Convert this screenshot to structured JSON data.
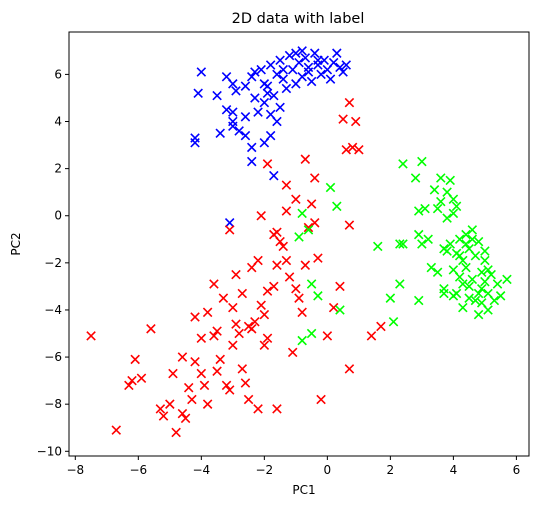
{
  "chart_data": {
    "type": "scatter",
    "title": "2D data with label",
    "xlabel": "PC1",
    "ylabel": "PC2",
    "xlim": [
      -8.2,
      6.4
    ],
    "ylim": [
      -10.2,
      7.8
    ],
    "xticks": [
      -8,
      -6,
      -4,
      -2,
      0,
      2,
      4,
      6
    ],
    "yticks": [
      -10,
      -8,
      -6,
      -4,
      -2,
      0,
      2,
      4,
      6
    ],
    "xtick_labels": [
      "−8",
      "−6",
      "−4",
      "−2",
      "0",
      "2",
      "4",
      "6"
    ],
    "ytick_labels": [
      "−10",
      "−8",
      "−6",
      "−4",
      "−2",
      "0",
      "2",
      "4",
      "6"
    ],
    "grid": false,
    "marker": "x",
    "series": [
      {
        "color": "#0000ff",
        "points": [
          [
            -4.0,
            6.1
          ],
          [
            -3.2,
            5.9
          ],
          [
            -2.9,
            5.3
          ],
          [
            -2.4,
            5.9
          ],
          [
            -2.3,
            6.1
          ],
          [
            -2.1,
            6.2
          ],
          [
            -2.0,
            5.6
          ],
          [
            -1.9,
            5.2
          ],
          [
            -1.8,
            6.4
          ],
          [
            -1.6,
            6.0
          ],
          [
            -1.5,
            6.6
          ],
          [
            -1.4,
            5.8
          ],
          [
            -1.3,
            5.4
          ],
          [
            -1.2,
            6.8
          ],
          [
            -1.1,
            6.2
          ],
          [
            -1.0,
            5.6
          ],
          [
            -0.9,
            6.5
          ],
          [
            -0.8,
            5.9
          ],
          [
            -0.7,
            6.7
          ],
          [
            -0.6,
            6.3
          ],
          [
            -0.5,
            5.7
          ],
          [
            -0.4,
            6.9
          ],
          [
            -0.3,
            6.4
          ],
          [
            -0.2,
            6.0
          ],
          [
            -0.1,
            6.6
          ],
          [
            0.0,
            6.2
          ],
          [
            0.1,
            5.8
          ],
          [
            0.2,
            6.5
          ],
          [
            0.3,
            6.9
          ],
          [
            0.4,
            6.3
          ],
          [
            0.5,
            6.1
          ],
          [
            -0.8,
            7.0
          ],
          [
            -1.0,
            6.9
          ],
          [
            -0.3,
            6.6
          ],
          [
            0.6,
            6.4
          ],
          [
            -4.1,
            5.2
          ],
          [
            -3.5,
            5.1
          ],
          [
            -3.0,
            5.6
          ],
          [
            -2.6,
            5.5
          ],
          [
            -2.3,
            5.0
          ],
          [
            -2.0,
            4.8
          ],
          [
            -1.7,
            5.1
          ],
          [
            -1.5,
            4.6
          ],
          [
            -1.8,
            4.3
          ],
          [
            -2.2,
            4.4
          ],
          [
            -2.6,
            4.2
          ],
          [
            -3.0,
            4.0
          ],
          [
            -3.2,
            4.5
          ],
          [
            -3.4,
            3.5
          ],
          [
            -3.0,
            3.8
          ],
          [
            -2.8,
            3.6
          ],
          [
            -2.6,
            3.4
          ],
          [
            -2.4,
            2.9
          ],
          [
            -2.4,
            2.3
          ],
          [
            -2.0,
            3.1
          ],
          [
            -1.8,
            3.4
          ],
          [
            -1.6,
            4.0
          ],
          [
            -4.2,
            3.3
          ],
          [
            -4.2,
            3.1
          ],
          [
            -1.7,
            1.7
          ],
          [
            -3.1,
            -0.3
          ],
          [
            -3.0,
            4.4
          ],
          [
            -1.9,
            5.5
          ],
          [
            -1.4,
            6.2
          ],
          [
            -0.6,
            6.1
          ]
        ]
      },
      {
        "color": "#ff0000",
        "points": [
          [
            -7.5,
            -5.1
          ],
          [
            -6.7,
            -9.1
          ],
          [
            -6.3,
            -7.2
          ],
          [
            -6.1,
            -6.1
          ],
          [
            -6.2,
            -7.0
          ],
          [
            -5.9,
            -6.9
          ],
          [
            -5.6,
            -4.8
          ],
          [
            -5.3,
            -8.2
          ],
          [
            -5.2,
            -8.5
          ],
          [
            -5.0,
            -8.0
          ],
          [
            -4.6,
            -6.0
          ],
          [
            -4.6,
            -8.4
          ],
          [
            -4.5,
            -8.6
          ],
          [
            -4.4,
            -7.3
          ],
          [
            -4.3,
            -7.8
          ],
          [
            -4.2,
            -6.2
          ],
          [
            -4.0,
            -5.2
          ],
          [
            -4.0,
            -6.7
          ],
          [
            -3.9,
            -7.2
          ],
          [
            -3.8,
            -4.1
          ],
          [
            -3.6,
            -5.1
          ],
          [
            -3.5,
            -6.6
          ],
          [
            -3.4,
            -6.1
          ],
          [
            -3.2,
            -7.2
          ],
          [
            -3.1,
            -7.4
          ],
          [
            -3.0,
            -5.5
          ],
          [
            -2.9,
            -4.6
          ],
          [
            -2.8,
            -5.0
          ],
          [
            -2.7,
            -6.5
          ],
          [
            -2.6,
            -7.1
          ],
          [
            -2.5,
            -7.8
          ],
          [
            -2.4,
            -4.8
          ],
          [
            -2.3,
            -4.5
          ],
          [
            -2.1,
            -3.8
          ],
          [
            -2.0,
            -4.2
          ],
          [
            -1.9,
            -5.2
          ],
          [
            -1.7,
            -3.0
          ],
          [
            -1.6,
            -2.1
          ],
          [
            -1.5,
            -1.1
          ],
          [
            -1.4,
            -1.3
          ],
          [
            -1.6,
            -0.7
          ],
          [
            -1.3,
            -1.9
          ],
          [
            -1.2,
            -2.6
          ],
          [
            -1.0,
            -3.1
          ],
          [
            -0.9,
            -3.5
          ],
          [
            -0.7,
            -2.1
          ],
          [
            -0.6,
            -0.5
          ],
          [
            -0.5,
            0.5
          ],
          [
            -0.4,
            -0.3
          ],
          [
            -0.3,
            -1.8
          ],
          [
            0.0,
            -5.1
          ],
          [
            0.2,
            -3.9
          ],
          [
            0.4,
            -3.0
          ],
          [
            0.6,
            2.8
          ],
          [
            0.8,
            2.9
          ],
          [
            1.0,
            2.8
          ],
          [
            0.5,
            4.1
          ],
          [
            0.7,
            4.8
          ],
          [
            0.9,
            4.0
          ],
          [
            -1.9,
            2.2
          ],
          [
            -1.3,
            1.3
          ],
          [
            -1.0,
            0.7
          ],
          [
            -0.7,
            2.4
          ],
          [
            -0.4,
            1.6
          ],
          [
            -2.1,
            0.0
          ],
          [
            -3.1,
            -0.6
          ],
          [
            -2.2,
            -1.9
          ],
          [
            -2.9,
            -2.5
          ],
          [
            -2.5,
            -4.7
          ],
          [
            -2.0,
            -5.5
          ],
          [
            -3.3,
            -3.5
          ],
          [
            -2.7,
            -3.3
          ],
          [
            -4.2,
            -4.3
          ],
          [
            -3.5,
            -4.9
          ],
          [
            -2.2,
            -8.2
          ],
          [
            -1.6,
            -8.2
          ],
          [
            -0.2,
            -7.8
          ],
          [
            0.7,
            -6.5
          ],
          [
            1.4,
            -5.1
          ],
          [
            1.7,
            -4.7
          ],
          [
            -1.7,
            -0.8
          ],
          [
            -1.3,
            0.2
          ],
          [
            -2.4,
            -2.2
          ],
          [
            -3.6,
            -2.9
          ],
          [
            -3.0,
            -3.9
          ],
          [
            0.7,
            -0.4
          ],
          [
            -0.8,
            -4.1
          ],
          [
            -1.1,
            -5.8
          ],
          [
            -4.9,
            -6.7
          ],
          [
            -3.8,
            -8.0
          ],
          [
            -4.8,
            -9.2
          ],
          [
            -1.9,
            -3.2
          ]
        ]
      },
      {
        "color": "#00ff00",
        "points": [
          [
            -0.8,
            0.1
          ],
          [
            0.1,
            1.2
          ],
          [
            0.3,
            0.4
          ],
          [
            -0.6,
            -0.6
          ],
          [
            -0.9,
            -0.9
          ],
          [
            -0.5,
            -2.9
          ],
          [
            -0.3,
            -3.4
          ],
          [
            0.4,
            -4.0
          ],
          [
            -0.5,
            -5.0
          ],
          [
            -0.8,
            -5.3
          ],
          [
            1.6,
            -1.3
          ],
          [
            2.0,
            -3.5
          ],
          [
            2.1,
            -4.5
          ],
          [
            2.3,
            -2.9
          ],
          [
            2.3,
            -1.2
          ],
          [
            2.4,
            2.2
          ],
          [
            2.8,
            1.6
          ],
          [
            3.0,
            2.3
          ],
          [
            2.9,
            0.2
          ],
          [
            3.1,
            0.3
          ],
          [
            2.9,
            -0.8
          ],
          [
            2.9,
            -3.6
          ],
          [
            3.2,
            -1.0
          ],
          [
            3.3,
            -2.2
          ],
          [
            3.4,
            1.1
          ],
          [
            3.5,
            -2.4
          ],
          [
            3.5,
            0.3
          ],
          [
            3.6,
            1.6
          ],
          [
            3.6,
            0.6
          ],
          [
            3.7,
            -1.4
          ],
          [
            3.7,
            -3.1
          ],
          [
            3.8,
            1.0
          ],
          [
            3.8,
            -0.1
          ],
          [
            3.9,
            1.5
          ],
          [
            3.9,
            -1.2
          ],
          [
            4.0,
            0.7
          ],
          [
            4.0,
            -2.3
          ],
          [
            4.0,
            -3.4
          ],
          [
            4.1,
            -1.6
          ],
          [
            4.1,
            0.4
          ],
          [
            4.2,
            -2.6
          ],
          [
            4.2,
            -1.0
          ],
          [
            4.3,
            -3.9
          ],
          [
            4.3,
            -1.9
          ],
          [
            4.4,
            -0.8
          ],
          [
            4.4,
            -2.2
          ],
          [
            4.5,
            -1.4
          ],
          [
            4.5,
            -3.0
          ],
          [
            4.6,
            -0.6
          ],
          [
            4.6,
            -2.7
          ],
          [
            4.7,
            -1.7
          ],
          [
            4.7,
            -3.6
          ],
          [
            4.8,
            -1.1
          ],
          [
            4.8,
            -4.2
          ],
          [
            4.9,
            -2.4
          ],
          [
            4.9,
            -3.1
          ],
          [
            5.0,
            -1.9
          ],
          [
            5.0,
            -2.8
          ],
          [
            5.1,
            -3.3
          ],
          [
            5.1,
            -4.0
          ],
          [
            5.2,
            -2.5
          ],
          [
            5.3,
            -3.6
          ],
          [
            5.4,
            -2.9
          ],
          [
            5.5,
            -3.4
          ],
          [
            5.7,
            -2.7
          ],
          [
            4.0,
            0.1
          ],
          [
            3.0,
            -1.2
          ],
          [
            2.4,
            -1.2
          ],
          [
            4.4,
            -1.2
          ],
          [
            4.5,
            -3.5
          ],
          [
            4.1,
            -3.3
          ],
          [
            4.2,
            -1.7
          ],
          [
            4.6,
            -1.0
          ],
          [
            3.8,
            -1.5
          ],
          [
            4.8,
            -3.3
          ],
          [
            5.0,
            -1.5
          ],
          [
            4.3,
            -2.9
          ],
          [
            3.7,
            -3.3
          ],
          [
            4.9,
            -3.7
          ],
          [
            5.1,
            -2.3
          ]
        ]
      }
    ]
  }
}
